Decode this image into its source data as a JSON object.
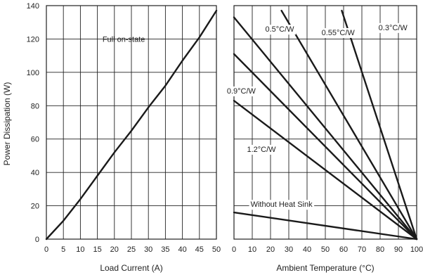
{
  "chart_data": [
    {
      "type": "line",
      "xlabel": "Load Current (A)",
      "ylabel": "Power Dissipation (W)",
      "xlim": [
        0,
        50
      ],
      "ylim": [
        0,
        140
      ],
      "xticks": [
        "0",
        "5",
        "10",
        "15",
        "20",
        "25",
        "30",
        "35",
        "40",
        "45",
        "50"
      ],
      "yticks": [
        "0",
        "20",
        "40",
        "60",
        "80",
        "100",
        "120",
        "140"
      ],
      "grid": true,
      "series": [
        {
          "name": "Full on-state",
          "x": [
            0,
            5,
            10,
            15,
            20,
            25,
            30,
            35,
            40,
            45,
            50
          ],
          "y": [
            0,
            11,
            24,
            38,
            52,
            65,
            79,
            92,
            107,
            121,
            137
          ]
        }
      ]
    },
    {
      "type": "line",
      "xlabel": "Ambient Temperature (°C)",
      "ylabel": "",
      "xlim": [
        0,
        100
      ],
      "ylim": [
        0,
        140
      ],
      "xticks": [
        "0",
        "10",
        "20",
        "30",
        "40",
        "50",
        "60",
        "70",
        "80",
        "90",
        "100"
      ],
      "yticks": [
        "0",
        "20",
        "40",
        "60",
        "80",
        "100",
        "120",
        "140"
      ],
      "grid": true,
      "series": [
        {
          "name": "0.3°C/W",
          "x": [
            59,
            100
          ],
          "y": [
            137,
            0
          ]
        },
        {
          "name": "0.55°C/W",
          "x": [
            26,
            100
          ],
          "y": [
            137,
            0
          ]
        },
        {
          "name": "0.5°C/W",
          "x": [
            0,
            100
          ],
          "y": [
            133,
            0
          ]
        },
        {
          "name": "0.9°C/W",
          "x": [
            0,
            100
          ],
          "y": [
            111,
            0
          ]
        },
        {
          "name": "1.2°C/W",
          "x": [
            0,
            100
          ],
          "y": [
            83,
            0
          ]
        },
        {
          "name": "Without Heat Sink",
          "x": [
            0,
            100
          ],
          "y": [
            16,
            0
          ]
        }
      ]
    }
  ]
}
